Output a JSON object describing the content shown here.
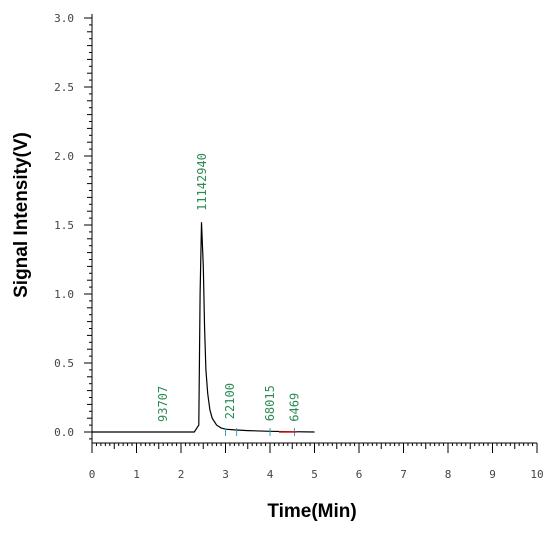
{
  "chart_data": {
    "type": "line",
    "title": "",
    "xlabel": "Time(Min)",
    "ylabel": "Signal Intensity(V)",
    "xlim": [
      0,
      10
    ],
    "ylim": [
      -0.1,
      3.1
    ],
    "x_ticks": [
      "0",
      "1",
      "2",
      "3",
      "4",
      "5",
      "6",
      "7",
      "8",
      "9",
      "10"
    ],
    "y_ticks": [
      "0.0",
      "0.5",
      "1.0",
      "1.5",
      "2.0",
      "2.5",
      "3.0"
    ],
    "grid": false,
    "series": [
      {
        "x": [
          0.0,
          1.0,
          2.0,
          2.3,
          2.4,
          2.43,
          2.46,
          2.5,
          2.53,
          2.56,
          2.6,
          2.65,
          2.7,
          2.8,
          2.9,
          3.0,
          3.2,
          3.5,
          4.0,
          4.5,
          5.0
        ],
        "y": [
          0.0,
          0.0,
          0.0,
          0.0,
          0.05,
          1.0,
          1.52,
          1.2,
          0.75,
          0.45,
          0.28,
          0.16,
          0.1,
          0.05,
          0.03,
          0.02,
          0.015,
          0.01,
          0.005,
          0.002,
          0.0
        ]
      }
    ],
    "peak_labels": [
      {
        "text": "93707",
        "x": 1.6,
        "y": 0.0
      },
      {
        "text": "11142940",
        "x": 2.47,
        "y": 1.53
      },
      {
        "text": "22100",
        "x": 3.1,
        "y": 0.02
      },
      {
        "text": "68015",
        "x": 4.0,
        "y": 0.005
      },
      {
        "text": "6469",
        "x": 4.55,
        "y": 0.002
      }
    ]
  },
  "colors": {
    "line": "#000000",
    "peak_label": "#2e8b57",
    "baseline_marker": "#d02020",
    "peak_marker": "#3aa0c0"
  }
}
